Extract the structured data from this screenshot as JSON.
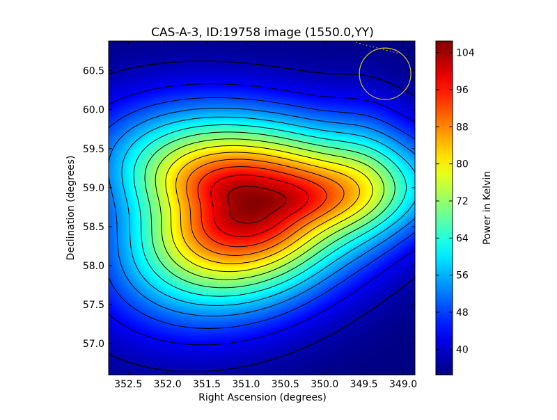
{
  "chart_data": {
    "type": "heatmap",
    "title": "CAS-A-3, ID:19758 image (1550.0,YY)",
    "xlabel": "Right Ascension (degrees)",
    "ylabel": "Declination (degrees)",
    "colorbar_label": "Power in Kelvin",
    "colormap": "jet",
    "xlim": [
      352.75,
      348.85
    ],
    "ylim": [
      56.6,
      60.88
    ],
    "x_inverted": true,
    "xticks": [
      352.5,
      352.0,
      351.5,
      351.0,
      350.5,
      350.0,
      349.5,
      349.0
    ],
    "xtick_labels": [
      "352.5",
      "352.0",
      "351.5",
      "351.0",
      "350.5",
      "350.0",
      "349.5",
      "349.0"
    ],
    "yticks": [
      57.0,
      57.5,
      58.0,
      58.5,
      59.0,
      59.5,
      60.0,
      60.5
    ],
    "ytick_labels": [
      "57.0",
      "57.5",
      "58.0",
      "58.5",
      "59.0",
      "59.5",
      "60.0",
      "60.5"
    ],
    "color_range": [
      34.5,
      106.5
    ],
    "colorbar_ticks": [
      40,
      48,
      56,
      64,
      72,
      80,
      88,
      96,
      104
    ],
    "colorbar_tick_labels": [
      "40",
      "48",
      "56",
      "64",
      "72",
      "80",
      "88",
      "96",
      "104"
    ],
    "background_value": 34.5,
    "peak": {
      "ra": 350.9,
      "dec": 58.8,
      "value": 106
    },
    "source_extent": {
      "ra_min": 352.5,
      "ra_max": 349.5,
      "dec_min": 57.7,
      "dec_max": 60.0
    },
    "contour_levels": [
      38,
      43,
      48,
      53,
      58,
      63,
      68,
      73,
      78,
      83,
      88,
      93,
      98,
      103
    ],
    "beam_circle": {
      "ra": 349.23,
      "dec": 60.46,
      "radius_deg": 0.33,
      "color": "#d8c81c"
    },
    "dotted_line": {
      "points": [
        [
          349.6,
          60.86
        ],
        [
          349.05,
          60.72
        ]
      ],
      "color": "#d8c81c"
    }
  },
  "colors": {
    "axes_frame": "#000000",
    "contour": "#000000",
    "annotation": "#d8c81c"
  }
}
